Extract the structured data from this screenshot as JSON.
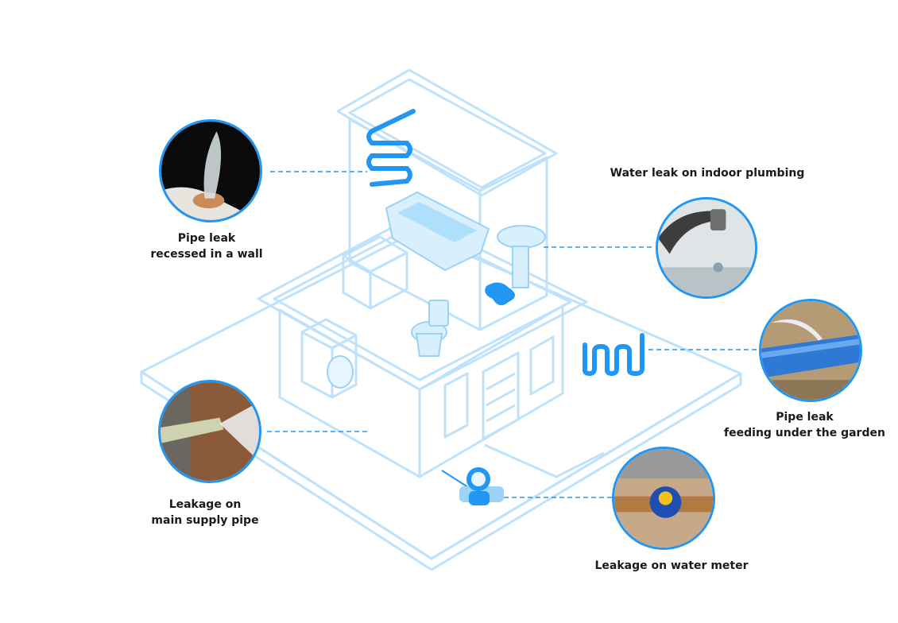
{
  "colors": {
    "accent": "#2196f3",
    "outline": "#bfe2fb",
    "fixture_fill": "#d8effd",
    "label_text": "#1a1a1a"
  },
  "callouts": [
    {
      "id": "wall",
      "icon": "pipe-leak-wall-photo",
      "lines": [
        "Pipe leak",
        "recessed in a wall"
      ]
    },
    {
      "id": "indoor",
      "icon": "dripping-faucet-photo",
      "lines": [
        "Water leak on indoor plumbing"
      ]
    },
    {
      "id": "garden",
      "icon": "burst-blue-pipe-photo",
      "lines": [
        "Pipe leak",
        "feeding under the garden"
      ]
    },
    {
      "id": "supply",
      "icon": "main-supply-pipe-photo",
      "lines": [
        "Leakage on",
        "main supply pipe"
      ]
    },
    {
      "id": "meter",
      "icon": "water-meter-photo",
      "lines": [
        "Leakage on water meter"
      ]
    }
  ]
}
